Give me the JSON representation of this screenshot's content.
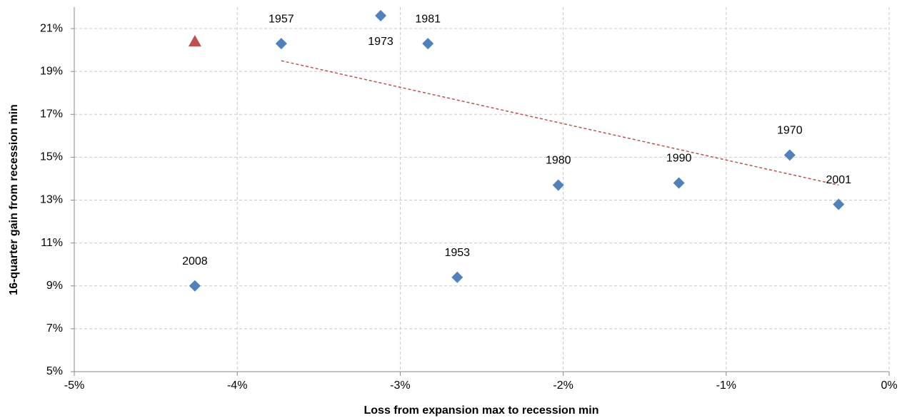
{
  "chart_data": {
    "type": "scatter",
    "x_label": "Loss from expansion max to recession min",
    "y_label": "16-quarter gain from recession min",
    "xlim": [
      -5,
      0
    ],
    "ylim": [
      5,
      22
    ],
    "xticks": [
      {
        "value": -5,
        "label": "-5%"
      },
      {
        "value": -4,
        "label": "-4%"
      },
      {
        "value": -3,
        "label": "-3%"
      },
      {
        "value": -2,
        "label": "-2%"
      },
      {
        "value": -1,
        "label": "-1%"
      },
      {
        "value": 0,
        "label": "0%"
      }
    ],
    "yticks": [
      {
        "value": 5,
        "label": "5%"
      },
      {
        "value": 7,
        "label": "7%"
      },
      {
        "value": 9,
        "label": "9%"
      },
      {
        "value": 11,
        "label": "11%"
      },
      {
        "value": 13,
        "label": "13%"
      },
      {
        "value": 15,
        "label": "15%"
      },
      {
        "value": 17,
        "label": "17%"
      },
      {
        "value": 19,
        "label": "19%"
      },
      {
        "value": 21,
        "label": "21%"
      }
    ],
    "grid": true,
    "series": [
      {
        "color": "#4f81bd",
        "marker": "diamond",
        "labels": [
          "1957",
          "1973",
          "1981",
          "1980",
          "1990",
          "1970",
          "2001",
          "2008",
          "1953"
        ],
        "x": [
          -3.73,
          -3.12,
          -2.83,
          -2.03,
          -1.29,
          -0.61,
          -0.31,
          -4.26,
          -2.65
        ],
        "values": [
          20.3,
          21.6,
          20.3,
          13.7,
          13.8,
          15.1,
          12.8,
          9.0,
          9.4
        ]
      },
      {
        "color": "#c0504d",
        "marker": "triangle",
        "x": [
          -4.26
        ],
        "values": [
          20.4
        ]
      }
    ],
    "trendline": {
      "color": "#c0504d",
      "x": [
        -3.73,
        -0.31
      ],
      "values": [
        19.5,
        13.7
      ]
    }
  }
}
